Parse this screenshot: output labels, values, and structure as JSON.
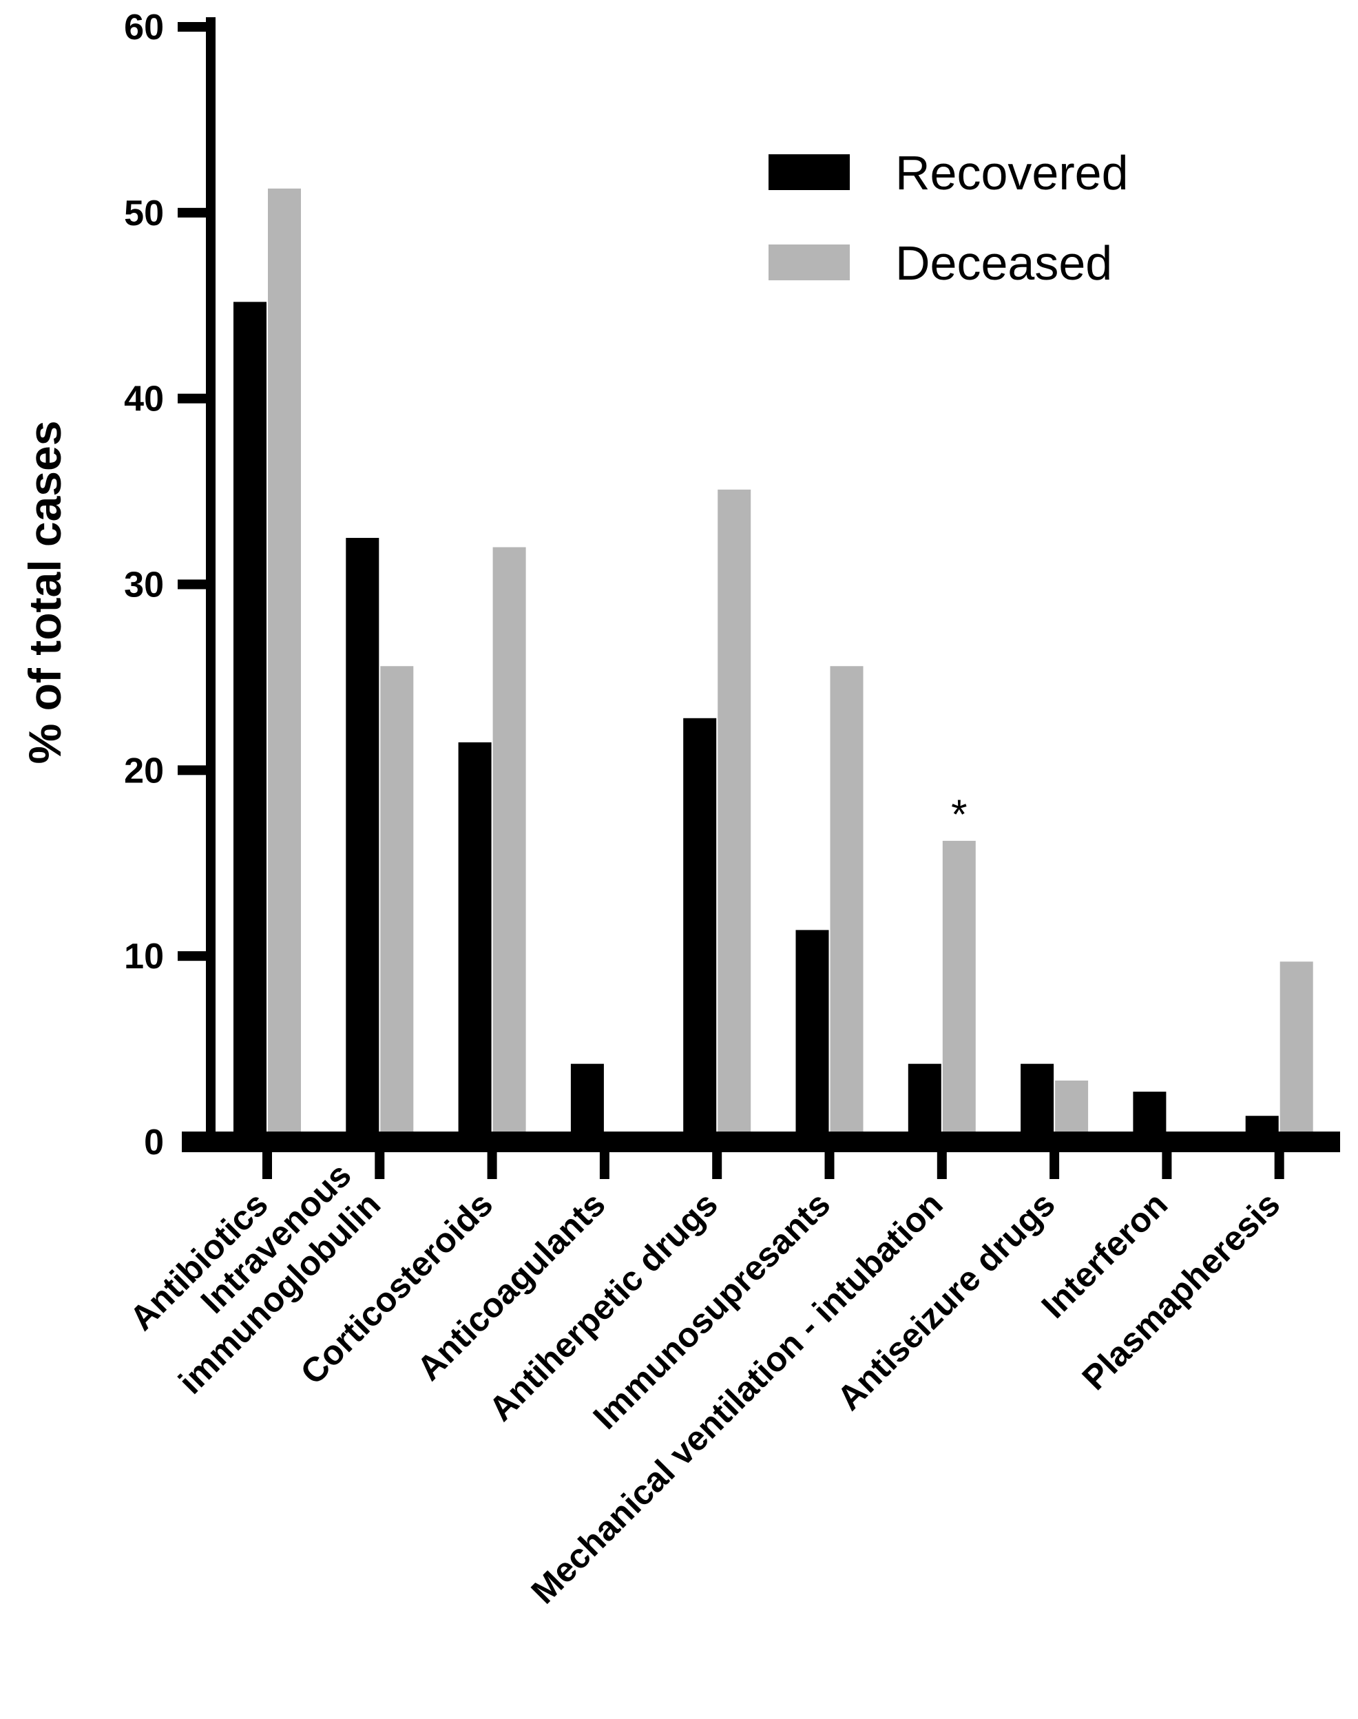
{
  "chart_data": {
    "type": "bar",
    "title": "",
    "xlabel": "",
    "ylabel": "% of total cases",
    "ylim": [
      0,
      60
    ],
    "yticks": [
      0,
      10,
      20,
      30,
      40,
      50,
      60
    ],
    "grid": false,
    "legend_position": "top-right",
    "categories": [
      [
        "Antibiotics"
      ],
      [
        "Intravenous",
        "immunoglobulin"
      ],
      [
        "Corticosteroids"
      ],
      [
        "Anticoagulants"
      ],
      [
        "Antiherpetic drugs"
      ],
      [
        "Immunosupresants"
      ],
      [
        "Mechanical ventilation - intubation"
      ],
      [
        "Antiseizure drugs"
      ],
      [
        "Interferon"
      ],
      [
        "Plasmapheresis"
      ]
    ],
    "series": [
      {
        "name": "Recovered",
        "color": "#000000",
        "values": [
          45.2,
          32.5,
          21.5,
          4.2,
          22.8,
          11.4,
          4.2,
          4.2,
          2.7,
          1.4
        ]
      },
      {
        "name": "Deceased",
        "color": "#b5b5b5",
        "values": [
          51.3,
          25.6,
          32.0,
          0,
          35.1,
          25.6,
          16.2,
          3.3,
          0,
          9.7
        ]
      }
    ],
    "annotations": [
      {
        "text": "*",
        "category_index": 6,
        "series_index": 1
      }
    ]
  }
}
